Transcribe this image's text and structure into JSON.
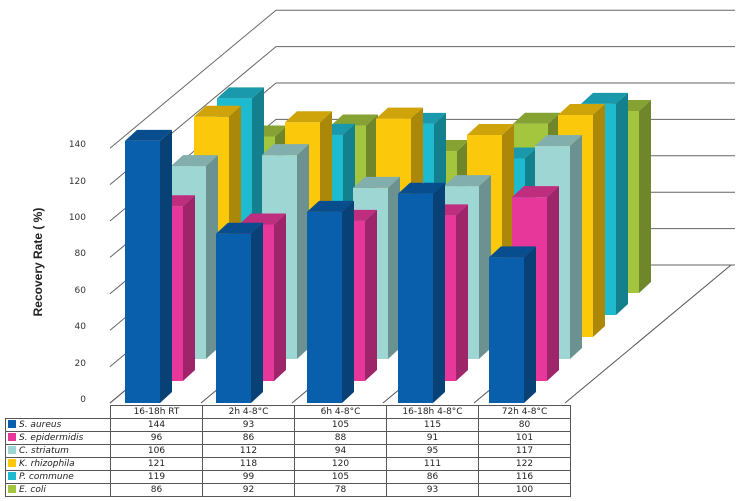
{
  "chart_data": {
    "type": "bar",
    "subtype": "3d-clustered-column",
    "title": "",
    "xlabel": "",
    "ylabel": "Recovery Rate (%)",
    "ylim": [
      0,
      140
    ],
    "yticks": [
      0,
      20,
      40,
      60,
      80,
      100,
      120,
      140
    ],
    "grid": true,
    "legend_position": "data-table-left",
    "categories": [
      "16-18h RT",
      "2h 4-8°C",
      "6h 4-8°C",
      "16-18h 4-8°C",
      "72h 4-8°C"
    ],
    "series": [
      {
        "name": "S. aureus",
        "color": "#0a5fad",
        "values": [
          144,
          93,
          105,
          115,
          80
        ]
      },
      {
        "name": "S. epidermidis",
        "color": "#e8379a",
        "values": [
          96,
          86,
          88,
          91,
          101
        ]
      },
      {
        "name": "C. striatum",
        "color": "#9ed6d4",
        "values": [
          106,
          112,
          94,
          95,
          117
        ]
      },
      {
        "name": "K. rhizophila",
        "color": "#fcc80c",
        "values": [
          121,
          118,
          120,
          111,
          122
        ]
      },
      {
        "name": "P. commune",
        "color": "#1ebbd0",
        "values": [
          119,
          99,
          105,
          86,
          116
        ]
      },
      {
        "name": "E. coli",
        "color": "#a3c63e",
        "values": [
          86,
          92,
          78,
          93,
          100
        ]
      }
    ]
  },
  "axis": {
    "ylabel": "Recovery Rate ( %)",
    "ticks": [
      "0",
      "20",
      "40",
      "60",
      "80",
      "100",
      "120",
      "140"
    ]
  },
  "table": {
    "headers": [
      "16-18h RT",
      "2h 4-8°C",
      "6h 4-8°C",
      "16-18h 4-8°C",
      "72h 4-8°C"
    ],
    "rows": [
      {
        "label": "S. aureus",
        "color": "#0a5fad",
        "cells": [
          "144",
          "93",
          "105",
          "115",
          "80"
        ]
      },
      {
        "label": "S. epidermidis",
        "color": "#e8379a",
        "cells": [
          "96",
          "86",
          "88",
          "91",
          "101"
        ]
      },
      {
        "label": "C. striatum",
        "color": "#9ed6d4",
        "cells": [
          "106",
          "112",
          "94",
          "95",
          "117"
        ]
      },
      {
        "label": "K. rhizophila",
        "color": "#fcc80c",
        "cells": [
          "121",
          "118",
          "120",
          "111",
          "122"
        ]
      },
      {
        "label": "P. commune",
        "color": "#1ebbd0",
        "cells": [
          "119",
          "99",
          "105",
          "86",
          "116"
        ]
      },
      {
        "label": "E. coli",
        "color": "#a3c63e",
        "cells": [
          "86",
          "92",
          "78",
          "93",
          "100"
        ]
      }
    ]
  }
}
